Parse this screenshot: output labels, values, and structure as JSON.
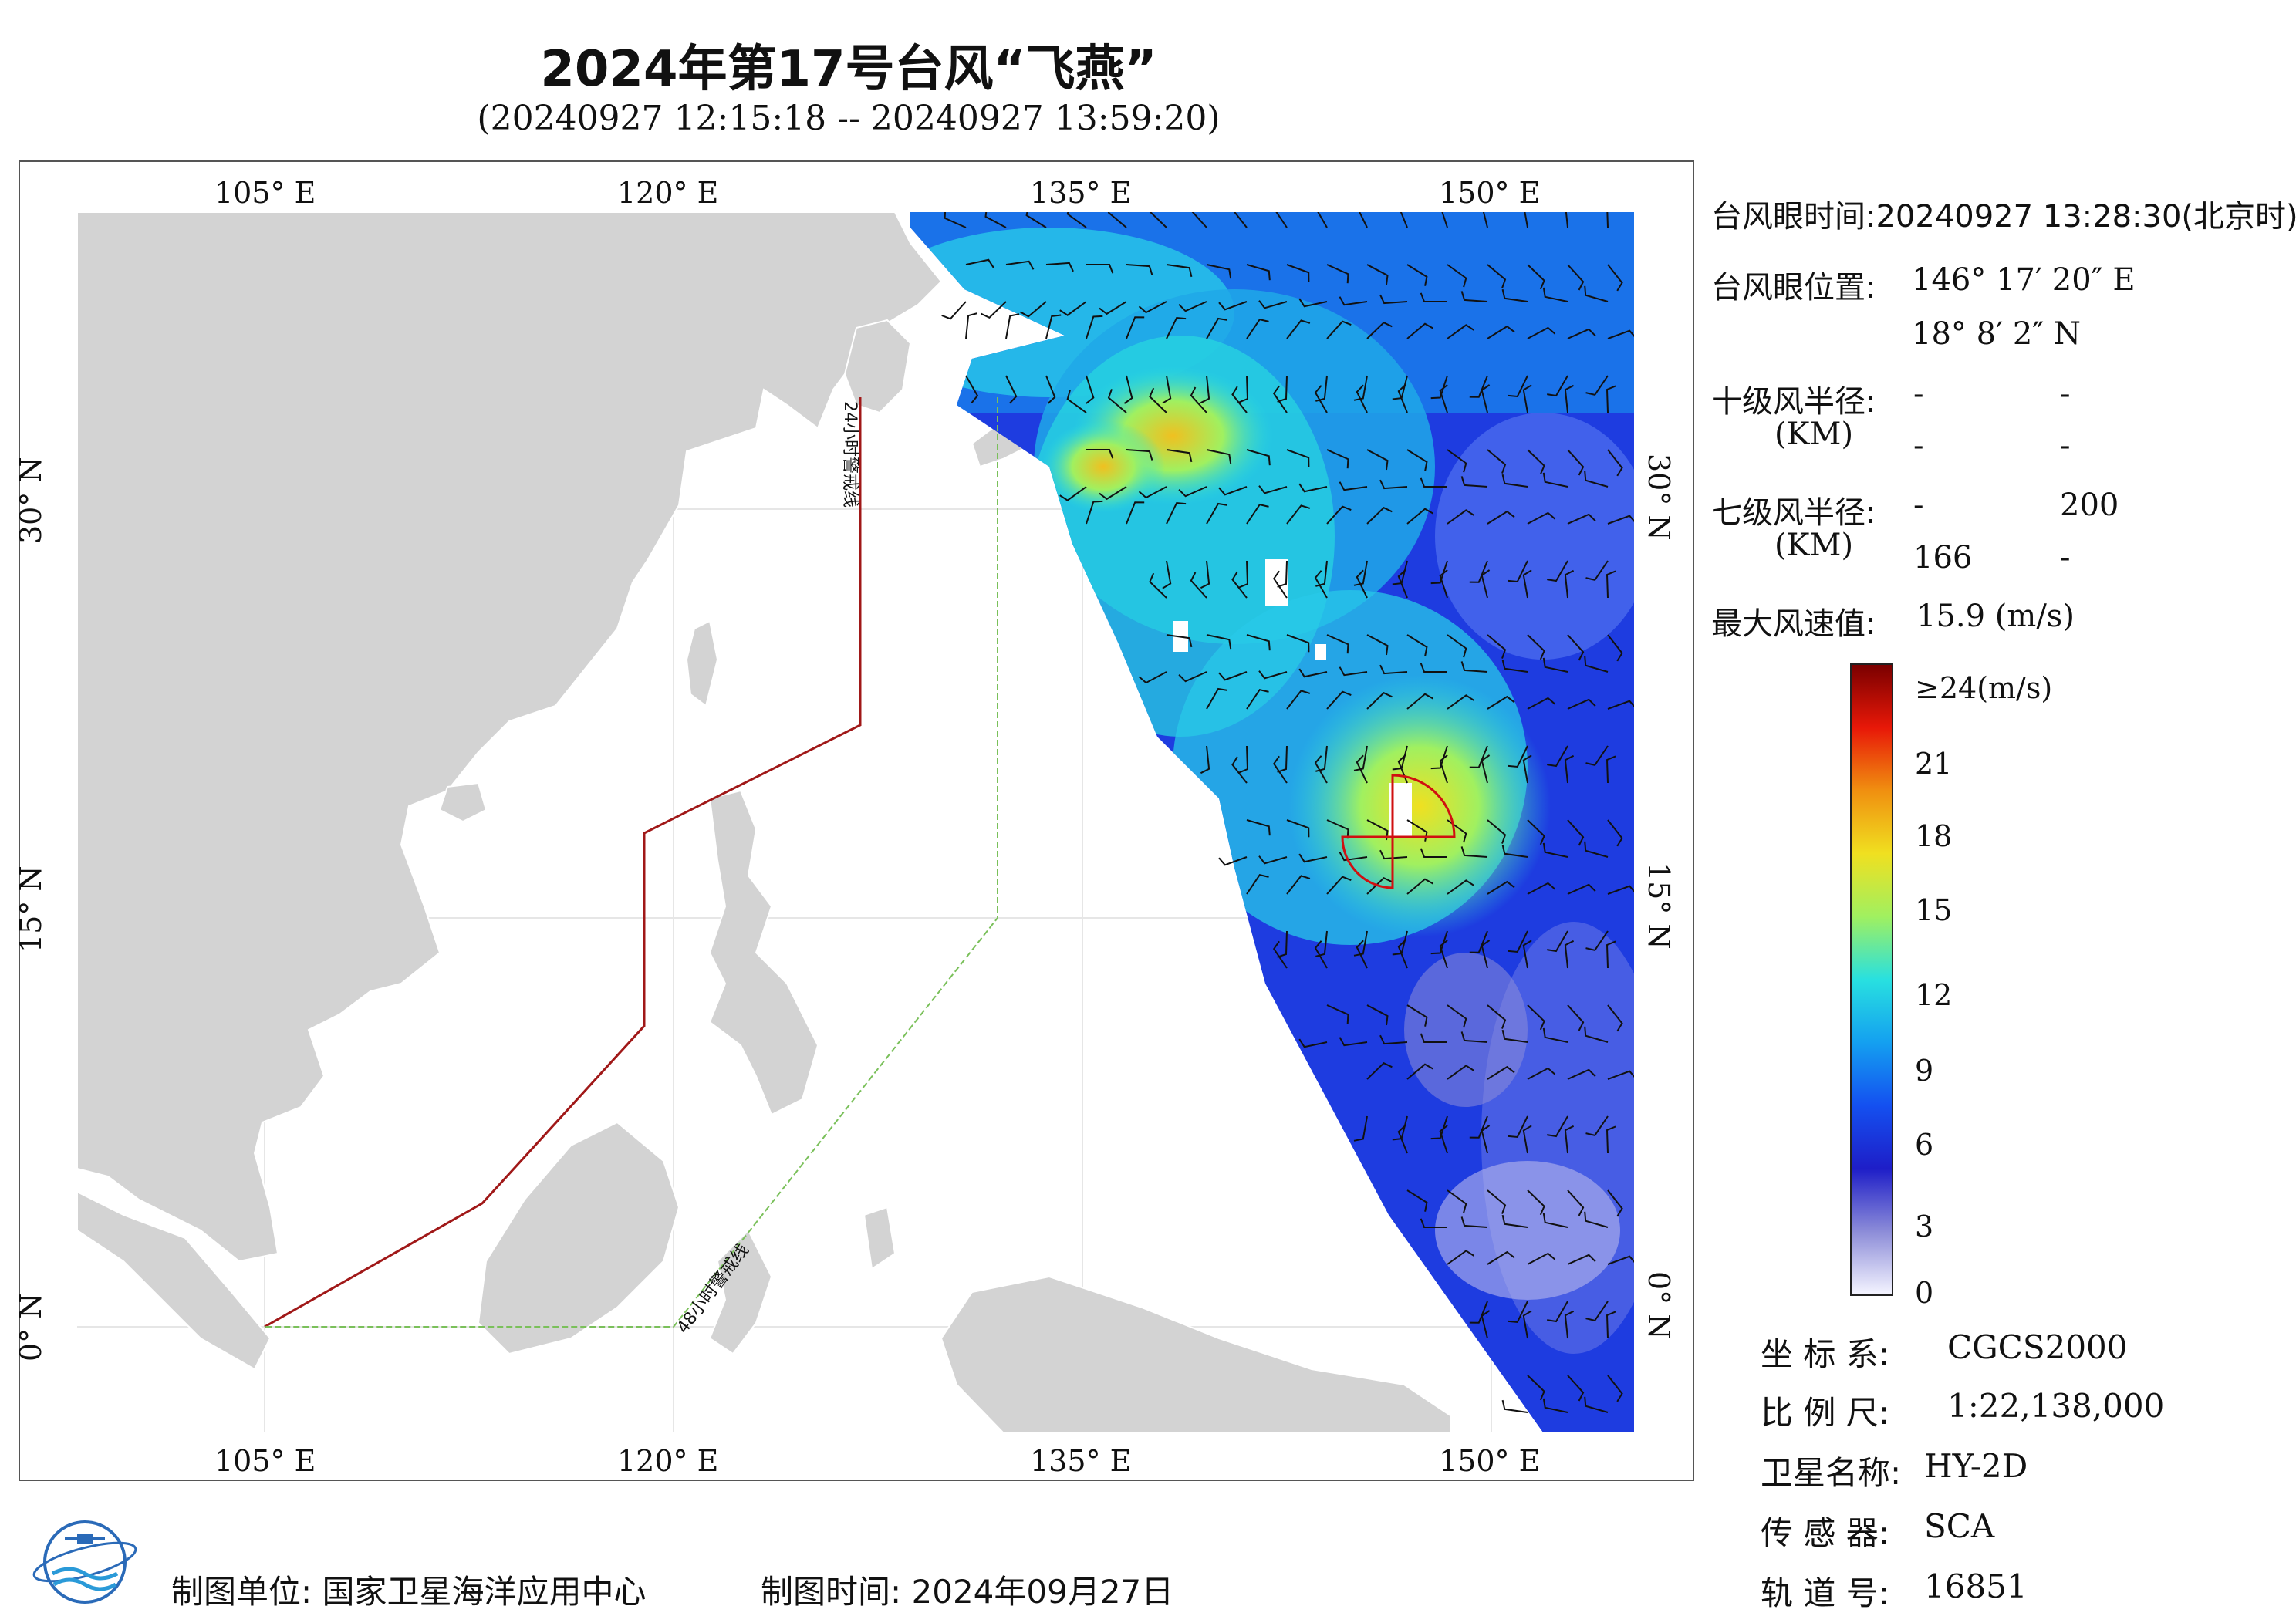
{
  "title": "2024年第17号台风“飞燕”",
  "subtitle": "(20240927 12:15:18 -- 20240927 13:59:20)",
  "axes": {
    "top": [
      "105° E",
      "120° E",
      "135° E",
      "150° E"
    ],
    "bottom": [
      "105° E",
      "120° E",
      "135° E",
      "150° E"
    ],
    "left": [
      "30° N",
      "15° N",
      "0° N"
    ],
    "right": [
      "30° N",
      "15° N",
      "0° N"
    ]
  },
  "map": {
    "warning_24h_label": "24小时警戒线",
    "warning_48h_label": "48小时警戒线",
    "land_color": "#d3d3d3",
    "warning_24h_color": "#a01818",
    "warning_48h_color": "#7ac05a"
  },
  "info": {
    "eye_time": "台风眼时间:20240927 13:28:30(北京时)",
    "eye_pos_label": "台风眼位置:",
    "eye_lon": "146° 17′ 20″ E",
    "eye_lat": "18° 8′ 2″ N",
    "r10_label": "十级风半径:",
    "r10_unit": "(KM)",
    "r10_values": [
      "-",
      "-",
      "-",
      "-"
    ],
    "r7_label": "七级风半径:",
    "r7_unit": "(KM)",
    "r7_values": [
      "-",
      "200",
      "166",
      "-"
    ],
    "max_wind_label": "最大风速值:",
    "max_wind_value": "15.9 (m/s)"
  },
  "colorbar": {
    "labels": [
      "≥24(m/s)",
      "21",
      "18",
      "15",
      "12",
      "9",
      "6",
      "3",
      "0"
    ],
    "colors": [
      "#f4f4ff",
      "#8c8cd8",
      "#1e1ec8",
      "#1450f0",
      "#14a0f0",
      "#28e0e0",
      "#a0f060",
      "#f0e020",
      "#f09010",
      "#e81808",
      "#7a0000"
    ]
  },
  "meta": {
    "crs_label": "坐 标 系:",
    "crs_value": "CGCS2000",
    "scale_label": "比 例 尺:",
    "scale_value": "1:22,138,000",
    "satellite_label": "卫星名称:",
    "satellite_value": "HY-2D",
    "sensor_label": "传 感 器:",
    "sensor_value": "SCA",
    "orbit_label": "轨 道 号:",
    "orbit_value": "16851"
  },
  "footer": {
    "org": "制图单位: 国家卫星海洋应用中心",
    "date": "制图时间:   2024年09月27日"
  }
}
